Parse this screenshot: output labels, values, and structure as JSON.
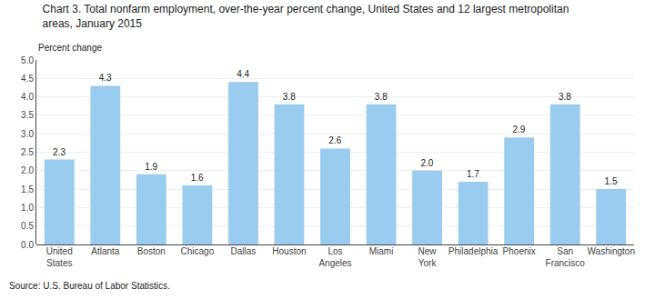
{
  "chart_data": {
    "type": "bar",
    "title": "Chart 3. Total nonfarm employment, over-the-year percent change, United States and 12 largest metropolitan\nareas, January 2015",
    "ylabel": "Percent change",
    "source": "Source: U.S. Bureau of Labor Statistics.",
    "categories": [
      "United\nStates",
      "Atlanta",
      "Boston",
      "Chicago",
      "Dallas",
      "Houston",
      "Los\nAngeles",
      "Miami",
      "New\nYork",
      "Philadelphia",
      "Phoenix",
      "San\nFrancisco",
      "Washington"
    ],
    "values": [
      2.3,
      4.3,
      1.9,
      1.6,
      4.4,
      3.8,
      2.6,
      3.8,
      2.0,
      1.7,
      2.9,
      3.8,
      1.5
    ],
    "value_labels": [
      "2.3",
      "4.3",
      "1.9",
      "1.6",
      "4.4",
      "3.8",
      "2.6",
      "3.8",
      "2.0",
      "1.7",
      "2.9",
      "3.8",
      "1.5"
    ],
    "data_labels": true,
    "color": "#99ccee",
    "ylim": [
      0,
      5.0
    ],
    "yticks": [
      {
        "value": 0.0,
        "label": "0.0"
      },
      0.5,
      {
        "value": 1.0,
        "label": "1.0"
      },
      1.5,
      {
        "value": 2.0,
        "label": "2.0"
      },
      2.5,
      {
        "value": 3.0,
        "label": "3.0"
      },
      3.5,
      {
        "value": 4.0,
        "label": "4.0"
      },
      4.5,
      {
        "value": 5.0,
        "label": "5.0"
      }
    ],
    "grid": true
  }
}
